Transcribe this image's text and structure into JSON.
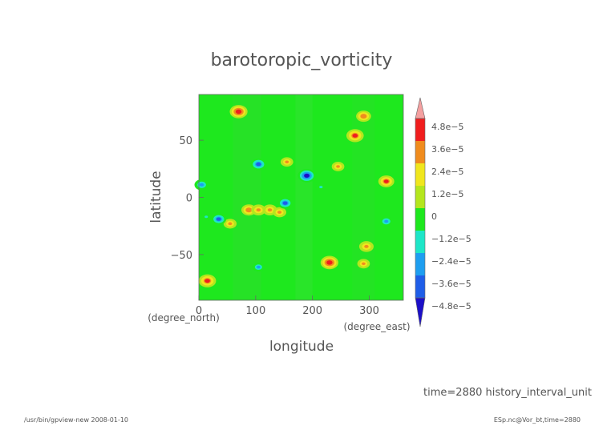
{
  "chart_data": {
    "type": "heatmap",
    "title": "barotoropic_vorticity",
    "xlabel": "longitude",
    "ylabel": "latitude",
    "x_unit": "(degree_east)",
    "y_unit": "(degree_north)",
    "xlim": [
      0,
      360
    ],
    "ylim": [
      -90,
      90
    ],
    "x_ticks": [
      "0",
      "100",
      "200",
      "300"
    ],
    "y_ticks": [
      "50",
      "0",
      "−50"
    ],
    "colorbar_labels": [
      "4.8e−5",
      "3.6e−5",
      "2.4e−5",
      "1.2e−5",
      "0",
      "−1.2e−5",
      "−2.4e−5",
      "−3.6e−5",
      "−4.8e−5"
    ],
    "colorbar_range": [
      -5.4e-05,
      5.4e-05
    ],
    "background_value": 0,
    "blobs": [
      {
        "lon": 70,
        "lat": 75,
        "value": 4.8e-05
      },
      {
        "lon": 15,
        "lat": -73,
        "value": 4.6e-05
      },
      {
        "lon": 230,
        "lat": -57,
        "value": 4.8e-05
      },
      {
        "lon": 275,
        "lat": 54,
        "value": 4.6e-05
      },
      {
        "lon": 290,
        "lat": 71,
        "value": 3.6e-05
      },
      {
        "lon": 330,
        "lat": 14,
        "value": 4e-05
      },
      {
        "lon": 295,
        "lat": -43,
        "value": 3.4e-05
      },
      {
        "lon": 290,
        "lat": -58,
        "value": 2.6e-05
      },
      {
        "lon": 245,
        "lat": 27,
        "value": 2.6e-05
      },
      {
        "lon": 155,
        "lat": 31,
        "value": 2.6e-05
      },
      {
        "lon": 88,
        "lat": -11,
        "value": 3.6e-05
      },
      {
        "lon": 105,
        "lat": -11,
        "value": 3.4e-05
      },
      {
        "lon": 125,
        "lat": -11,
        "value": 3.4e-05
      },
      {
        "lon": 142,
        "lat": -13,
        "value": 3e-05
      },
      {
        "lon": 55,
        "lat": -23,
        "value": 2.8e-05
      },
      {
        "lon": 190,
        "lat": 19,
        "value": -4.8e-05
      },
      {
        "lon": 35,
        "lat": -19,
        "value": -3.6e-05
      },
      {
        "lon": 5,
        "lat": 11,
        "value": -3.4e-05
      },
      {
        "lon": 330,
        "lat": -21,
        "value": -3e-05
      },
      {
        "lon": 152,
        "lat": -5,
        "value": -3.6e-05
      },
      {
        "lon": 105,
        "lat": 29,
        "value": -4e-05
      },
      {
        "lon": 105,
        "lat": -61,
        "value": -2.4e-05
      },
      {
        "lon": 13,
        "lat": -17,
        "value": -2e-05
      },
      {
        "lon": 215,
        "lat": 9,
        "value": -2e-05
      }
    ]
  },
  "footer": {
    "time_label": "time=2880  history_interval_unit",
    "left_note": "/usr/bin/gpview-new  2008-01-10",
    "right_note": "ESp.nc@Vor_bt,time=2880"
  }
}
